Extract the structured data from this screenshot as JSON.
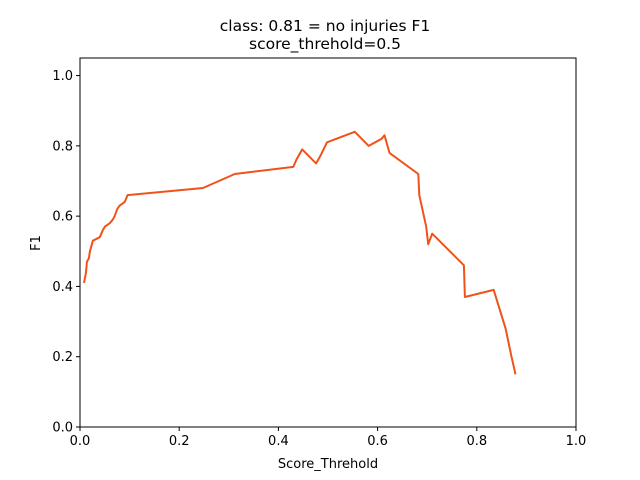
{
  "chart_data": {
    "type": "line",
    "title": "class: 0.81 = no injuries F1",
    "subtitle": "score_threhold=0.5",
    "xlabel": "Score_Threhold",
    "ylabel": "F1",
    "xlim": [
      0.0,
      1.0
    ],
    "ylim": [
      0.0,
      1.05
    ],
    "x_ticks": [
      "0.0",
      "0.2",
      "0.4",
      "0.6",
      "0.8",
      "1.0"
    ],
    "y_ticks": [
      "0.0",
      "0.2",
      "0.4",
      "0.6",
      "0.8",
      "1.0"
    ],
    "grid": false,
    "line_color": "#f0531a",
    "series": [
      {
        "x": [
          0.008,
          0.012,
          0.014,
          0.018,
          0.02,
          0.026,
          0.04,
          0.046,
          0.05,
          0.06,
          0.066,
          0.07,
          0.075,
          0.08,
          0.09,
          0.096,
          0.248,
          0.312,
          0.43,
          0.436,
          0.448,
          0.476,
          0.484,
          0.498,
          0.554,
          0.582,
          0.608,
          0.614,
          0.624,
          0.682,
          0.684,
          0.698,
          0.702,
          0.71,
          0.774,
          0.776,
          0.834,
          0.858,
          0.87,
          0.878
        ],
        "y": [
          0.41,
          0.44,
          0.47,
          0.48,
          0.5,
          0.53,
          0.54,
          0.56,
          0.57,
          0.58,
          0.59,
          0.6,
          0.62,
          0.63,
          0.64,
          0.66,
          0.68,
          0.72,
          0.74,
          0.76,
          0.79,
          0.75,
          0.77,
          0.81,
          0.84,
          0.8,
          0.82,
          0.83,
          0.78,
          0.72,
          0.66,
          0.57,
          0.52,
          0.55,
          0.46,
          0.37,
          0.39,
          0.28,
          0.2,
          0.15
        ]
      }
    ]
  }
}
